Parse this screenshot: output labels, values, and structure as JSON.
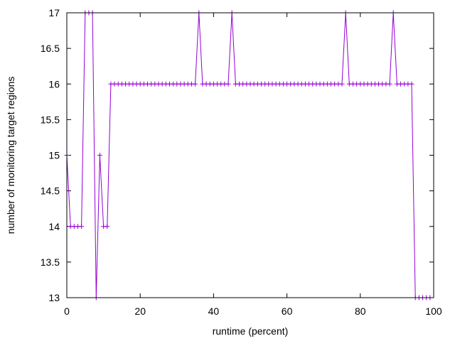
{
  "chart_data": {
    "type": "line",
    "title": "",
    "xlabel": "runtime (percent)",
    "ylabel": "number of monitoring target regions",
    "xlim": [
      0,
      100
    ],
    "ylim": [
      13,
      17
    ],
    "xticks": [
      "0",
      "20",
      "40",
      "60",
      "80",
      "100"
    ],
    "yticks": [
      "13",
      "13.5",
      "14",
      "14.5",
      "15",
      "15.5",
      "16",
      "16.5",
      "17"
    ],
    "grid": false,
    "legend": "none",
    "series": [
      {
        "color": "#9400d3",
        "marker": "plus",
        "x": [
          0,
          1,
          2,
          3,
          4,
          5,
          6,
          7,
          8,
          9,
          10,
          11,
          12,
          13,
          14,
          15,
          16,
          17,
          18,
          19,
          20,
          21,
          22,
          23,
          24,
          25,
          26,
          27,
          28,
          29,
          30,
          31,
          32,
          33,
          34,
          35,
          36,
          37,
          38,
          39,
          40,
          41,
          42,
          43,
          44,
          45,
          46,
          47,
          48,
          49,
          50,
          51,
          52,
          53,
          54,
          55,
          56,
          57,
          58,
          59,
          60,
          61,
          62,
          63,
          64,
          65,
          66,
          67,
          68,
          69,
          70,
          71,
          72,
          73,
          74,
          75,
          76,
          77,
          78,
          79,
          80,
          81,
          82,
          83,
          84,
          85,
          86,
          87,
          88,
          89,
          90,
          91,
          92,
          93,
          94,
          95,
          96,
          97,
          98,
          99
        ],
        "y": [
          15,
          14,
          14,
          14,
          14,
          17,
          17,
          17,
          13,
          15,
          14,
          14,
          16,
          16,
          16,
          16,
          16,
          16,
          16,
          16,
          16,
          16,
          16,
          16,
          16,
          16,
          16,
          16,
          16,
          16,
          16,
          16,
          16,
          16,
          16,
          16,
          17,
          16,
          16,
          16,
          16,
          16,
          16,
          16,
          16,
          17,
          16,
          16,
          16,
          16,
          16,
          16,
          16,
          16,
          16,
          16,
          16,
          16,
          16,
          16,
          16,
          16,
          16,
          16,
          16,
          16,
          16,
          16,
          16,
          16,
          16,
          16,
          16,
          16,
          16,
          16,
          17,
          16,
          16,
          16,
          16,
          16,
          16,
          16,
          16,
          16,
          16,
          16,
          16,
          17,
          16,
          16,
          16,
          16,
          16,
          13,
          13,
          13,
          13,
          13
        ]
      }
    ]
  }
}
